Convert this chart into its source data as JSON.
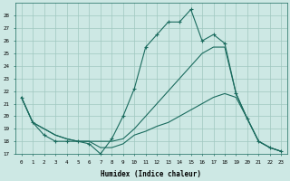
{
  "xlabel": "Humidex (Indice chaleur)",
  "background_color": "#cde8e4",
  "grid_color": "#a0c8c0",
  "line_color": "#1a6b5e",
  "xlim": [
    -0.5,
    23.5
  ],
  "ylim": [
    17,
    29
  ],
  "yticks": [
    17,
    18,
    19,
    20,
    21,
    22,
    23,
    24,
    25,
    26,
    27,
    28
  ],
  "xticks": [
    0,
    1,
    2,
    3,
    4,
    5,
    6,
    7,
    8,
    9,
    10,
    11,
    12,
    13,
    14,
    15,
    16,
    17,
    18,
    19,
    20,
    21,
    22,
    23
  ],
  "series1_x": [
    0,
    1,
    2,
    3,
    4,
    5,
    6,
    7,
    8,
    9,
    10,
    11,
    12,
    13,
    14,
    15,
    16,
    17,
    18,
    19,
    20,
    21,
    22,
    23
  ],
  "series1_y": [
    21.5,
    19.5,
    18.5,
    18.0,
    18.0,
    18.0,
    17.8,
    17.0,
    18.2,
    20.0,
    22.2,
    25.5,
    26.5,
    27.5,
    27.5,
    28.5,
    26.0,
    26.5,
    25.8,
    21.8,
    19.8,
    18.0,
    17.5,
    17.2
  ],
  "series2_x": [
    0,
    1,
    2,
    3,
    4,
    5,
    6,
    7,
    8,
    9,
    10,
    11,
    12,
    13,
    14,
    15,
    16,
    17,
    18,
    19,
    20,
    21,
    22,
    23
  ],
  "series2_y": [
    21.5,
    19.5,
    19.0,
    18.5,
    18.2,
    18.0,
    18.0,
    18.0,
    18.0,
    18.2,
    19.0,
    20.0,
    21.0,
    22.0,
    23.0,
    24.0,
    25.0,
    25.5,
    25.5,
    21.8,
    19.8,
    18.0,
    17.5,
    17.2
  ],
  "series3_x": [
    0,
    1,
    2,
    3,
    4,
    5,
    6,
    7,
    8,
    9,
    10,
    11,
    12,
    13,
    14,
    15,
    16,
    17,
    18,
    19,
    20,
    21,
    22,
    23
  ],
  "series3_y": [
    21.5,
    19.5,
    19.0,
    18.5,
    18.2,
    18.0,
    18.0,
    17.5,
    17.5,
    17.8,
    18.5,
    18.8,
    19.2,
    19.5,
    20.0,
    20.5,
    21.0,
    21.5,
    21.8,
    21.5,
    19.8,
    18.0,
    17.5,
    17.2
  ]
}
